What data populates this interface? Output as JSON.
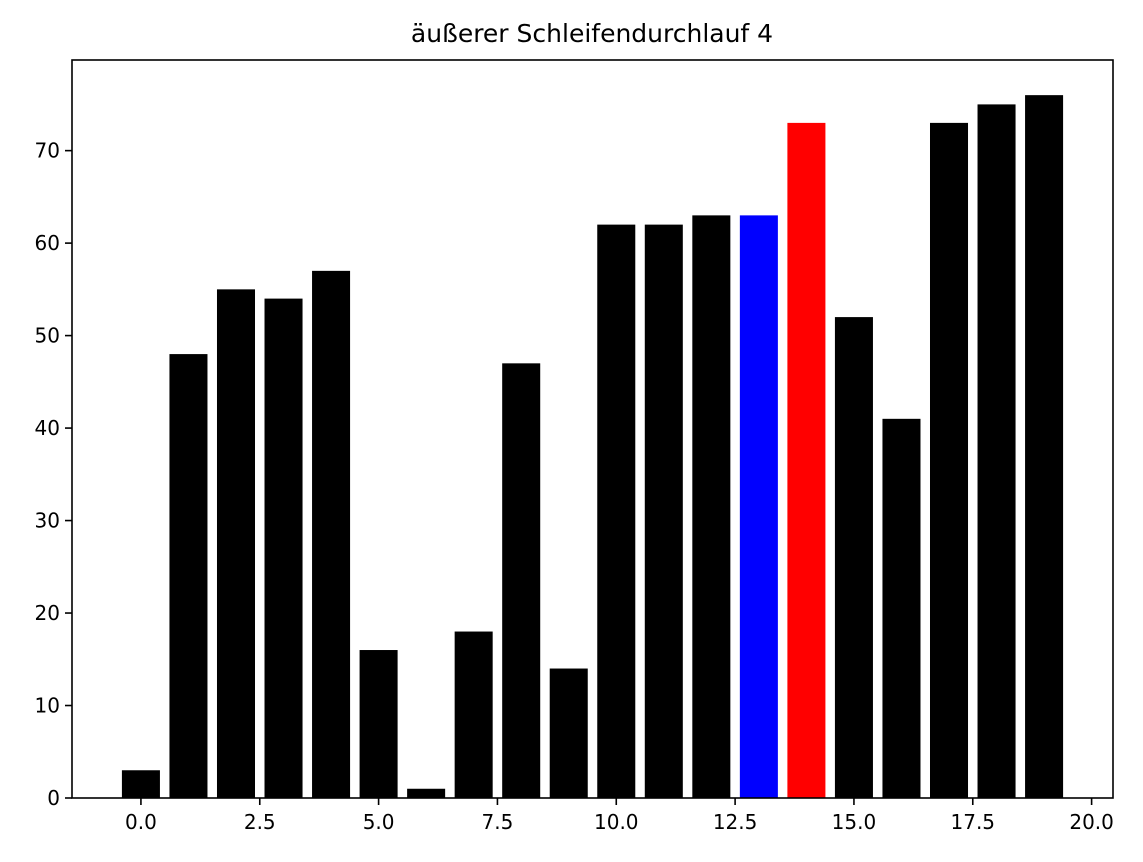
{
  "chart_data": {
    "type": "bar",
    "title": "äußerer Schleifendurchlauf 4",
    "xlabel": "",
    "ylabel": "",
    "x": [
      0,
      1,
      2,
      3,
      4,
      5,
      6,
      7,
      8,
      9,
      10,
      11,
      12,
      13,
      14,
      15,
      16,
      17,
      18,
      19
    ],
    "values": [
      3,
      48,
      55,
      54,
      57,
      16,
      1,
      18,
      47,
      14,
      62,
      62,
      63,
      63,
      73,
      52,
      41,
      73,
      75,
      76
    ],
    "colors": [
      "#000000",
      "#000000",
      "#000000",
      "#000000",
      "#000000",
      "#000000",
      "#000000",
      "#000000",
      "#000000",
      "#000000",
      "#000000",
      "#000000",
      "#000000",
      "#0000ff",
      "#ff0000",
      "#000000",
      "#000000",
      "#000000",
      "#000000",
      "#000000"
    ],
    "xlim": [
      -1.45,
      20.45
    ],
    "ylim": [
      0,
      79.8
    ],
    "xticks": [
      0.0,
      2.5,
      5.0,
      7.5,
      10.0,
      12.5,
      15.0,
      17.5,
      20.0
    ],
    "xtick_labels": [
      "0.0",
      "2.5",
      "5.0",
      "7.5",
      "10.0",
      "12.5",
      "15.0",
      "17.5",
      "20.0"
    ],
    "yticks": [
      0,
      10,
      20,
      30,
      40,
      50,
      60,
      70
    ],
    "ytick_labels": [
      "0",
      "10",
      "20",
      "30",
      "40",
      "50",
      "60",
      "70"
    ],
    "grid": false
  }
}
